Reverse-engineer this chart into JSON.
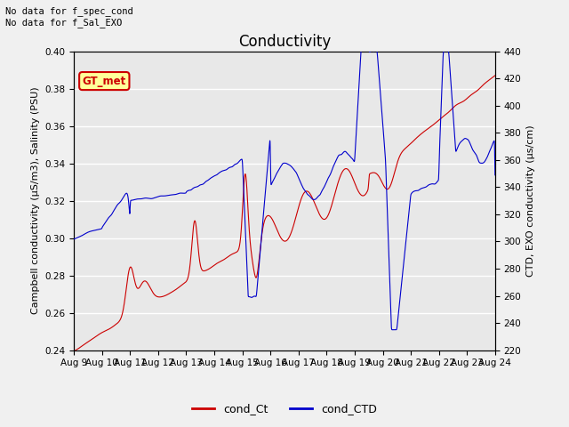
{
  "title": "Conductivity",
  "left_ylabel": "Campbell conductivity (μS/m3), Salinity (PSU)",
  "right_ylabel": "CTD, EXO conductivity (μs/cm)",
  "left_ylim": [
    0.24,
    0.4
  ],
  "right_ylim": [
    220,
    440
  ],
  "left_yticks": [
    0.24,
    0.26,
    0.28,
    0.3,
    0.32,
    0.34,
    0.36,
    0.38,
    0.4
  ],
  "right_yticks": [
    220,
    240,
    260,
    280,
    300,
    320,
    340,
    360,
    380,
    400,
    420,
    440
  ],
  "xtick_labels": [
    "Aug 9",
    "Aug 10",
    "Aug 11",
    "Aug 12",
    "Aug 13",
    "Aug 14",
    "Aug 15",
    "Aug 16",
    "Aug 17",
    "Aug 18",
    "Aug 19",
    "Aug 20",
    "Aug 21",
    "Aug 22",
    "Aug 23",
    "Aug 24"
  ],
  "annotation_top": "No data for f_spec_cond\nNo data for f_Sal_EXO",
  "legend_labels": [
    "cond_Ct",
    "cond_CTD"
  ],
  "legend_colors": [
    "#cc0000",
    "#0000cc"
  ],
  "box_label": "GT_met",
  "box_bg": "#ffff99",
  "box_border": "#cc0000",
  "box_text_color": "#cc0000",
  "bg_color": "#e8e8e8",
  "grid_color": "#ffffff",
  "title_fontsize": 12,
  "label_fontsize": 8,
  "tick_fontsize": 7.5
}
